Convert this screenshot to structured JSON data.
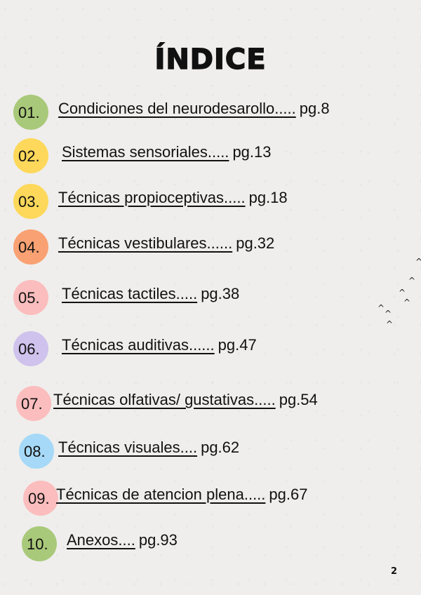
{
  "title": "ÍNDICE",
  "entries": [
    {
      "num": "01.",
      "label": "Condiciones del neurodesarollo.....",
      "page": "pg.8",
      "color": "#a9c97a"
    },
    {
      "num": "02.",
      "label": "Sistemas sensoriales.....",
      "page": "pg.13",
      "color": "#fdd85a"
    },
    {
      "num": "03.",
      "label": "Técnicas propioceptivas.....",
      "page": "pg.18",
      "color": "#fdd85a"
    },
    {
      "num": "04.",
      "label": "Técnicas vestibulares......",
      "page": "pg.32",
      "color": "#f9a173"
    },
    {
      "num": "05.",
      "label": "Técnicas tactiles.....",
      "page": "pg.38",
      "color": "#fbbdbd"
    },
    {
      "num": "06.",
      "label": "Técnicas auditivas......",
      "page": "pg.47",
      "color": "#cfc2ec"
    },
    {
      "num": "07.",
      "label": "Técnicas olfativas/ gustativas.....",
      "page": "pg.54",
      "color": "#fbbdbd"
    },
    {
      "num": "08.",
      "label": "Técnicas visuales....",
      "page": "pg.62",
      "color": "#a6d9f8"
    },
    {
      "num": "09.",
      "label": "Técnicas de atencion plena.....",
      "page": "pg.67",
      "color": "#fbbdbd"
    },
    {
      "num": "10.",
      "label": "Anexos....",
      "page": "pg.93",
      "color": "#a9c97a"
    }
  ],
  "page_number": "2"
}
